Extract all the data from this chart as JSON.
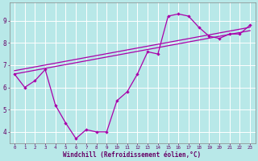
{
  "background_color": "#b8e8e8",
  "grid_color": "#ffffff",
  "line_color": "#aa00aa",
  "marker_color": "#aa00aa",
  "xlabel": "Windchill (Refroidissement éolien,°C)",
  "xlabel_color": "#660066",
  "tick_color": "#660066",
  "xlim": [
    -0.5,
    23.5
  ],
  "ylim": [
    3.5,
    9.8
  ],
  "yticks": [
    4,
    5,
    6,
    7,
    8,
    9
  ],
  "xticks": [
    0,
    1,
    2,
    3,
    4,
    5,
    6,
    7,
    8,
    9,
    10,
    11,
    12,
    13,
    14,
    15,
    16,
    17,
    18,
    19,
    20,
    21,
    22,
    23
  ],
  "main_x": [
    0,
    1,
    2,
    3,
    4,
    5,
    6,
    7,
    8,
    9,
    10,
    11,
    12,
    13,
    14,
    15,
    16,
    17,
    18,
    19,
    20,
    21,
    22,
    23
  ],
  "main_y": [
    6.6,
    6.0,
    6.3,
    6.8,
    5.2,
    4.4,
    3.7,
    4.1,
    4.0,
    4.0,
    5.4,
    5.8,
    6.6,
    7.6,
    7.5,
    9.2,
    9.3,
    9.2,
    8.7,
    8.3,
    8.2,
    8.4,
    8.4,
    8.8
  ],
  "line2_x": [
    0,
    23
  ],
  "line2_y": [
    6.6,
    8.55
  ],
  "line3_x": [
    0,
    23
  ],
  "line3_y": [
    6.75,
    8.7
  ]
}
